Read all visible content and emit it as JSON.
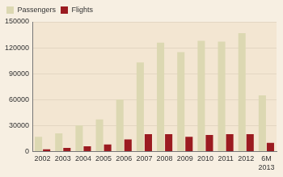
{
  "chart_data": {
    "type": "bar",
    "categories": [
      "2002",
      "2003",
      "2004",
      "2005",
      "2006",
      "2007",
      "2008",
      "2009",
      "2010",
      "2011",
      "2012",
      "6M 2013"
    ],
    "series": [
      {
        "name": "Passengers",
        "color": "#dcd8b2",
        "values": [
          17000,
          21000,
          30000,
          37000,
          60000,
          103000,
          126000,
          115000,
          128000,
          127000,
          137000,
          65000
        ]
      },
      {
        "name": "Flights",
        "color": "#9b1b20",
        "values": [
          2500,
          4000,
          6000,
          8000,
          14000,
          20000,
          20000,
          17000,
          19000,
          20000,
          20000,
          10000
        ]
      }
    ],
    "ylim": [
      0,
      150000
    ],
    "yticks": [
      0,
      30000,
      60000,
      90000,
      120000,
      150000
    ],
    "grid": true,
    "legend": "upper left"
  }
}
